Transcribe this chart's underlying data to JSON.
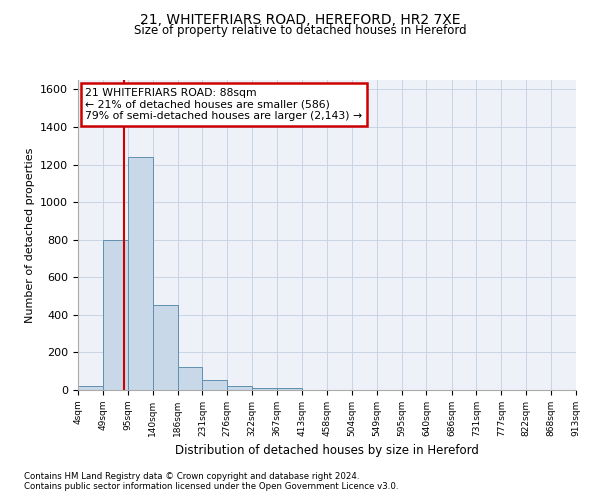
{
  "title1": "21, WHITEFRIARS ROAD, HEREFORD, HR2 7XE",
  "title2": "Size of property relative to detached houses in Hereford",
  "xlabel": "Distribution of detached houses by size in Hereford",
  "ylabel": "Number of detached properties",
  "footnote1": "Contains HM Land Registry data © Crown copyright and database right 2024.",
  "footnote2": "Contains public sector information licensed under the Open Government Licence v3.0.",
  "annotation_line1": "21 WHITEFRIARS ROAD: 88sqm",
  "annotation_line2": "← 21% of detached houses are smaller (586)",
  "annotation_line3": "79% of semi-detached houses are larger (2,143) →",
  "bin_edges": [
    4,
    49,
    95,
    140,
    186,
    231,
    276,
    322,
    367,
    413,
    458,
    504,
    549,
    595,
    640,
    686,
    731,
    777,
    822,
    868,
    913
  ],
  "bin_counts": [
    20,
    800,
    1240,
    450,
    125,
    55,
    20,
    10,
    10,
    0,
    0,
    0,
    0,
    0,
    0,
    0,
    0,
    0,
    0,
    0
  ],
  "bar_color": "#c8d8e8",
  "bar_edge_color": "#6090b0",
  "property_size": 88,
  "red_line_color": "#cc0000",
  "annotation_box_color": "#cc0000",
  "grid_color": "#c8d4e4",
  "background_color": "#eef2f8",
  "ylim": [
    0,
    1650
  ],
  "yticks": [
    0,
    200,
    400,
    600,
    800,
    1000,
    1200,
    1400,
    1600
  ]
}
